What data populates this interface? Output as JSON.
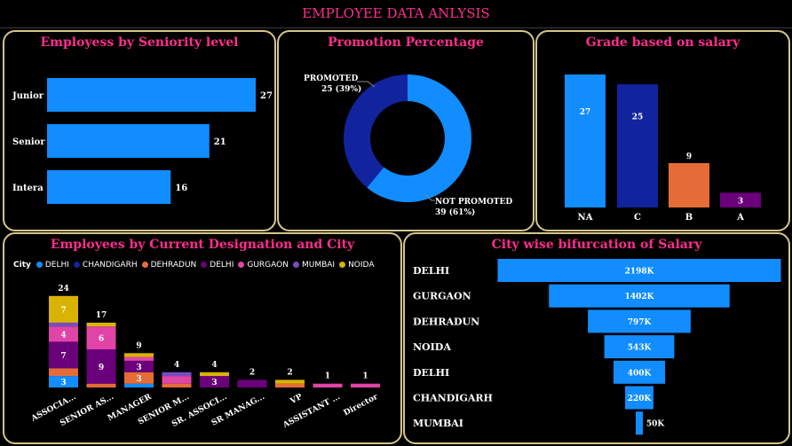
{
  "header": {
    "title": "EMPLOYEE DATA ANLYSIS"
  },
  "colors": {
    "blue": "#118DFF",
    "navy": "#12239E",
    "orange": "#E66C37",
    "purple": "#6B007B",
    "pink": "#E044A7",
    "violet": "#744EC2",
    "gold": "#D9B300",
    "title": "#ff2d8e",
    "border": "#d6c58a"
  },
  "panels": {
    "seniority": {
      "title": "Employess by Seniority level"
    },
    "promotion": {
      "title": "Promotion Percentage"
    },
    "grade": {
      "title": "Grade based on salary"
    },
    "designation": {
      "title": "Employees by Current Designation and City"
    },
    "city_salary": {
      "title": "City wise bifurcation of Salary"
    }
  },
  "chart_data": [
    {
      "id": "seniority",
      "type": "bar",
      "orientation": "horizontal",
      "title": "Employess by Seniority level",
      "categories": [
        "Junior",
        "Senior",
        "Intern"
      ],
      "category_labels": [
        "Junior",
        "Senior",
        "Intera"
      ],
      "values": [
        27,
        21,
        16
      ],
      "data_labels": [
        "27",
        "21",
        "16"
      ],
      "color": "#118DFF"
    },
    {
      "id": "promotion",
      "type": "pie",
      "donut": true,
      "title": "Promotion Percentage",
      "slices": [
        {
          "name": "PROMOTED",
          "value": 25,
          "label": "25 (39%)",
          "color": "#12239E"
        },
        {
          "name": "NOT PROMOTED",
          "value": 39,
          "label": "39 (61%)",
          "color": "#118DFF"
        }
      ]
    },
    {
      "id": "grade",
      "type": "bar",
      "orientation": "vertical",
      "title": "Grade based on salary",
      "categories": [
        "NA",
        "C",
        "B",
        "A"
      ],
      "values": [
        27,
        25,
        9,
        3
      ],
      "data_labels": [
        "27",
        "25",
        "9",
        "3"
      ],
      "colors": [
        "#118DFF",
        "#12239E",
        "#E66C37",
        "#6B007B"
      ]
    },
    {
      "id": "designation",
      "type": "bar",
      "stacked": true,
      "title": "Employees by Current Designation and City",
      "legend_title": "City",
      "legend_position": "top-left",
      "categories": [
        "ASSOCIA...",
        "SENIOR AS...",
        "MANAGER",
        "SENIOR M...",
        "SR. ASSOCI...",
        "SR MANAG...",
        "VP",
        "ASSISTANT ...",
        "Director"
      ],
      "totals": [
        24,
        17,
        9,
        4,
        4,
        2,
        2,
        1,
        1
      ],
      "series": [
        {
          "name": "DELHI",
          "color": "#118DFF",
          "values": [
            3,
            0,
            1,
            0,
            0,
            0,
            0,
            0,
            0
          ],
          "labels": [
            "3",
            "",
            "",
            "",
            "",
            "",
            "",
            "",
            ""
          ]
        },
        {
          "name": "CHANDIGARH",
          "color": "#12239E",
          "values": [
            0,
            0,
            0,
            0,
            0,
            0,
            0,
            0,
            0
          ],
          "labels": [
            "",
            "",
            "",
            "",
            "",
            "",
            "",
            "",
            ""
          ]
        },
        {
          "name": "DEHRADUN",
          "color": "#E66C37",
          "values": [
            2,
            1,
            3,
            1,
            0,
            0,
            1,
            0,
            0
          ],
          "labels": [
            "",
            "",
            "3",
            "",
            "",
            "",
            "",
            "",
            ""
          ]
        },
        {
          "name": "DELHI",
          "color": "#6B007B",
          "values": [
            7,
            9,
            3,
            0,
            3,
            2,
            0,
            0,
            0
          ],
          "labels": [
            "7",
            "9",
            "3",
            "",
            "3",
            "",
            "",
            "",
            ""
          ]
        },
        {
          "name": "GURGAON",
          "color": "#E044A7",
          "values": [
            4,
            6,
            1,
            2,
            0,
            0,
            0,
            1,
            1
          ],
          "labels": [
            "4",
            "6",
            "",
            "",
            "",
            "",
            "",
            "",
            ""
          ]
        },
        {
          "name": "MUMBAI",
          "color": "#744EC2",
          "values": [
            1,
            0,
            0,
            1,
            0,
            0,
            0,
            0,
            0
          ],
          "labels": [
            "",
            "",
            "",
            "",
            "",
            "",
            "",
            "",
            ""
          ]
        },
        {
          "name": "NOIDA",
          "color": "#D9B300",
          "values": [
            7,
            1,
            1,
            0,
            1,
            0,
            1,
            0,
            0
          ],
          "labels": [
            "7",
            "",
            "",
            "",
            "",
            "",
            "",
            "",
            ""
          ]
        }
      ]
    },
    {
      "id": "city_salary",
      "type": "bar",
      "subtype": "funnel",
      "title": "City wise bifurcation of Salary",
      "categories": [
        "DELHI",
        "GURGAON",
        "DEHRADUN",
        "NOIDA",
        "DELHI",
        "CHANDIGARH",
        "MUMBAI"
      ],
      "values": [
        2198,
        1402,
        797,
        543,
        400,
        220,
        50
      ],
      "data_labels": [
        "2198K",
        "1402K",
        "797K",
        "543K",
        "400K",
        "220K",
        "50K"
      ],
      "unit": "K",
      "color": "#118DFF"
    }
  ]
}
